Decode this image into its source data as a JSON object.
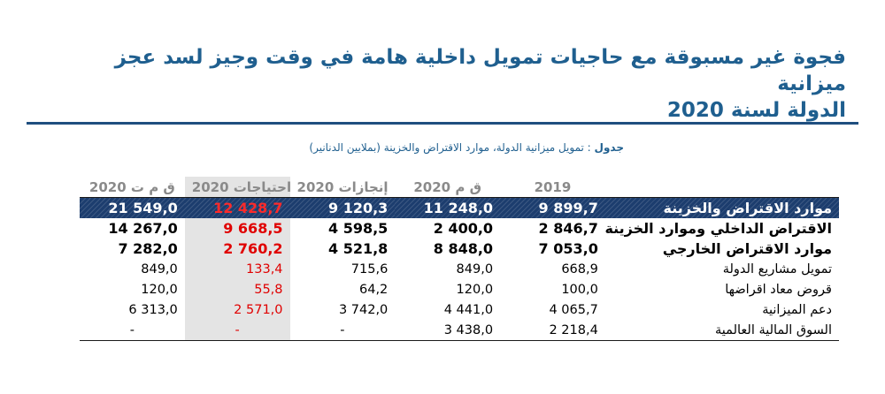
{
  "title_line1": "فجوة غير مسبوقة مع حاجيات تمويل داخلية هامة في وقت وجيز لسد عجز ميزانية",
  "title_line2": "الدولة لسنة 2020",
  "caption": {
    "label": "جدول",
    "text": ": تمويل ميزانية الدولة، موارد الاقتراض والخزينة (بملايين الدنانير)"
  },
  "colors": {
    "title": "#1f5f8f",
    "total_row_bg": "#1c3d6e",
    "highlight_red": "#e00000",
    "shaded_column": "#e4e4e4"
  },
  "table": {
    "headers": [
      "ق م ت 2020",
      "احتياجات 2020",
      "إنجازات 2020",
      "ق م 2020",
      "2019",
      ""
    ],
    "rows": [
      {
        "label": "موارد الاقتراض والخزينة",
        "values": [
          "21 549,0",
          "12 428,7",
          "9 120,3",
          "11 248,0",
          "9 899,7"
        ]
      },
      {
        "label": "الاقتراض الداخلي وموارد الخزينة",
        "values": [
          "14 267,0",
          "9 668,5",
          "4 598,5",
          "2 400,0",
          "2 846,7"
        ]
      },
      {
        "label": "موارد الاقتراض الخارجي",
        "values": [
          "7 282,0",
          "2 760,2",
          "4 521,8",
          "8 848,0",
          "7 053,0"
        ]
      },
      {
        "label": "تمويل مشاريع الدولة",
        "values": [
          "849,0",
          "133,4",
          "715,6",
          "849,0",
          "668,9"
        ]
      },
      {
        "label": "قروض معاد اقراضها",
        "values": [
          "120,0",
          "55,8",
          "64,2",
          "120,0",
          "100,0"
        ]
      },
      {
        "label": "دعم الميزانية",
        "values": [
          "6 313,0",
          "2 571,0",
          "3 742,0",
          "4 441,0",
          "4 065,7"
        ]
      },
      {
        "label": "السوق المالية العالمية",
        "values": [
          "-",
          "-",
          "-",
          "3 438,0",
          "2 218,4"
        ]
      }
    ]
  }
}
